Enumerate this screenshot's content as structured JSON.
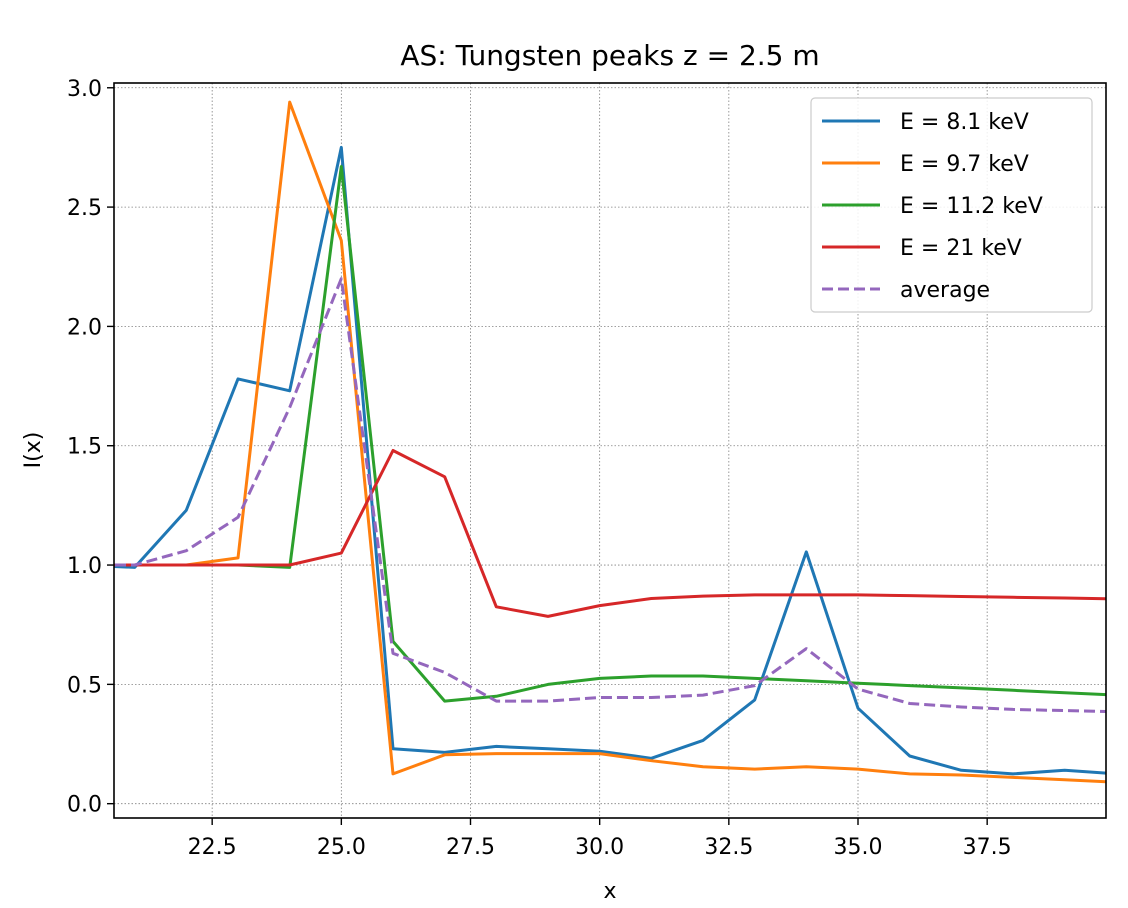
{
  "chart_data": {
    "type": "line",
    "title": "AS: Tungsten peaks z = 2.5 m",
    "xlabel": "x",
    "ylabel": "I(x)",
    "xlim": [
      20.6,
      39.8
    ],
    "ylim": [
      -0.06,
      3.02
    ],
    "xticks": [
      22.5,
      25.0,
      27.5,
      30.0,
      32.5,
      35.0,
      37.5
    ],
    "xtick_labels": [
      "22.5",
      "25.0",
      "27.5",
      "30.0",
      "32.5",
      "35.0",
      "37.5"
    ],
    "yticks": [
      0.0,
      0.5,
      1.0,
      1.5,
      2.0,
      2.5,
      3.0
    ],
    "ytick_labels": [
      "0.0",
      "0.5",
      "1.0",
      "1.5",
      "2.0",
      "2.5",
      "3.0"
    ],
    "grid": true,
    "legend_position": "top-right",
    "x": [
      20,
      21,
      22,
      23,
      24,
      25,
      26,
      27,
      28,
      29,
      30,
      31,
      32,
      33,
      34,
      35,
      36,
      37,
      38,
      39,
      40
    ],
    "series": [
      {
        "name": "E = 8.1 keV",
        "color": "#1f77b4",
        "dash": "solid",
        "values": [
          1.0,
          0.99,
          1.23,
          1.78,
          1.73,
          2.75,
          0.23,
          0.215,
          0.24,
          0.23,
          0.22,
          0.19,
          0.265,
          0.435,
          1.055,
          0.4,
          0.2,
          0.14,
          0.125,
          0.14,
          0.125
        ]
      },
      {
        "name": "E = 9.7 keV",
        "color": "#ff7f0e",
        "dash": "solid",
        "values": [
          1.0,
          1.0,
          1.0,
          1.03,
          2.94,
          2.36,
          0.125,
          0.205,
          0.21,
          0.21,
          0.21,
          0.18,
          0.155,
          0.145,
          0.155,
          0.145,
          0.125,
          0.12,
          0.11,
          0.1,
          0.09
        ]
      },
      {
        "name": "E = 11.2 keV",
        "color": "#2ca02c",
        "dash": "solid",
        "values": [
          1.0,
          1.0,
          1.0,
          1.0,
          0.99,
          2.67,
          0.68,
          0.43,
          0.45,
          0.5,
          0.525,
          0.535,
          0.535,
          0.525,
          0.515,
          0.505,
          0.495,
          0.485,
          0.475,
          0.465,
          0.455
        ]
      },
      {
        "name": "E = 21 keV",
        "color": "#d62728",
        "dash": "solid",
        "values": [
          1.0,
          1.0,
          1.0,
          1.0,
          1.0,
          1.05,
          1.48,
          1.37,
          0.825,
          0.785,
          0.83,
          0.86,
          0.87,
          0.875,
          0.875,
          0.875,
          0.872,
          0.868,
          0.865,
          0.862,
          0.858
        ]
      },
      {
        "name": "average",
        "color": "#9467bd",
        "dash": "dashed",
        "values": [
          1.0,
          1.0,
          1.06,
          1.2,
          1.66,
          2.2,
          0.63,
          0.55,
          0.43,
          0.43,
          0.445,
          0.445,
          0.455,
          0.495,
          0.65,
          0.48,
          0.42,
          0.405,
          0.395,
          0.39,
          0.385
        ]
      }
    ]
  }
}
